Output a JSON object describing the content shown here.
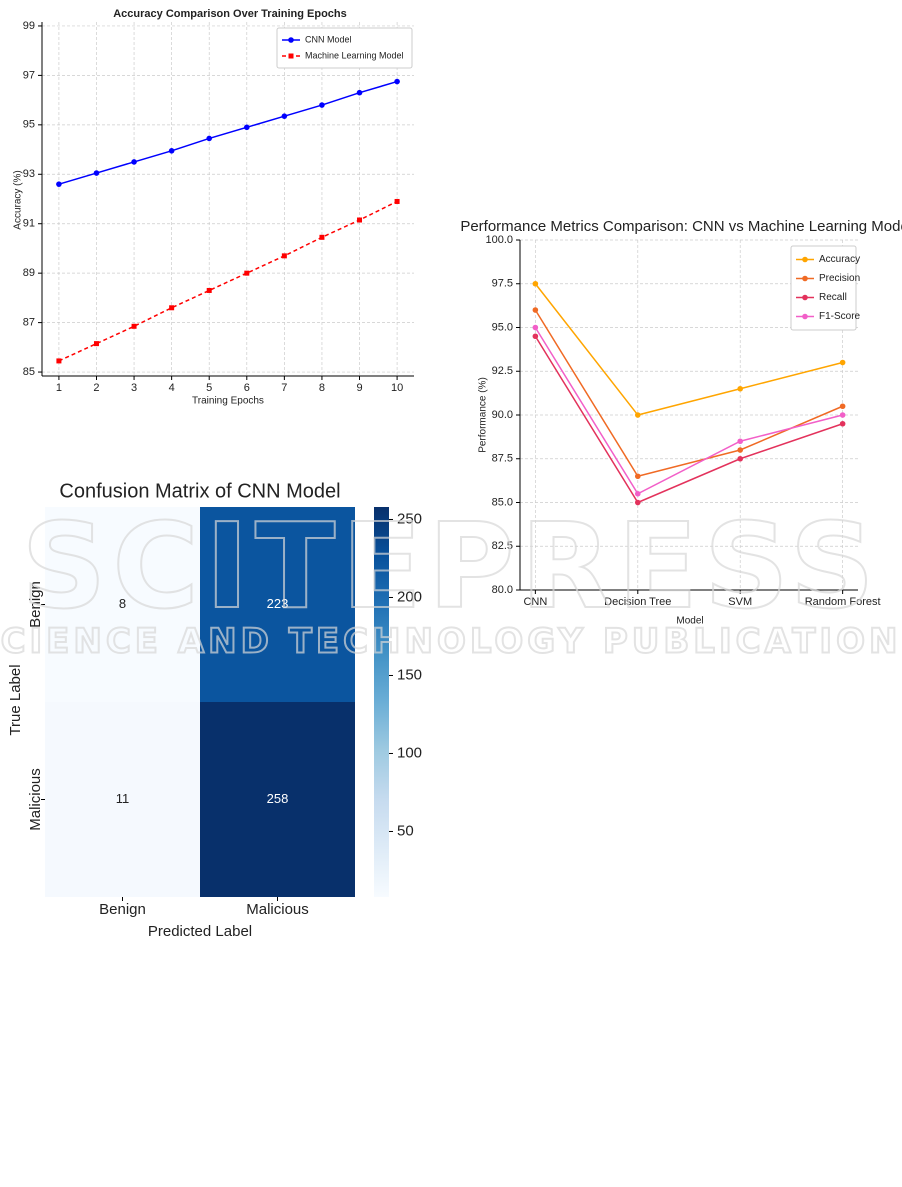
{
  "watermark": [
    "SCITEPRESS",
    "SCIENCE AND TECHNOLOGY PUBLICATIONS"
  ],
  "chart_data": [
    {
      "type": "line",
      "title": "Accuracy Comparison Over Training Epochs",
      "x_label": "Training Epochs",
      "y_label": "Accuracy (%)",
      "x": [
        1,
        2,
        3,
        4,
        5,
        6,
        7,
        8,
        9,
        10
      ],
      "xlim": [
        0.55,
        10.45
      ],
      "xticks": [
        1,
        2,
        3,
        4,
        5,
        6,
        7,
        8,
        9,
        10
      ],
      "ylim": [
        84.84,
        99.16
      ],
      "yticks": [
        85,
        87,
        89,
        91,
        93,
        95,
        97,
        99
      ],
      "grid": true,
      "legend": "upper right",
      "series": [
        {
          "name": "CNN Model",
          "color": "#0000ff",
          "marker": "circle",
          "linestyle": "solid",
          "values": [
            92.6,
            93.05,
            93.5,
            93.95,
            94.45,
            94.9,
            95.35,
            95.8,
            96.3,
            96.75
          ]
        },
        {
          "name": "Machine Learning Model",
          "color": "#ff0000",
          "marker": "square",
          "linestyle": "dashed",
          "values": [
            85.45,
            86.15,
            86.85,
            87.6,
            88.3,
            89.0,
            89.7,
            90.45,
            91.15,
            91.9
          ]
        }
      ]
    },
    {
      "type": "heatmap",
      "title": "Confusion Matrix of CNN Model",
      "x_label": "Predicted Label",
      "y_label": "True Label",
      "x_categories": [
        "Benign",
        "Malicious"
      ],
      "y_categories": [
        "Benign",
        "Malicious"
      ],
      "values": [
        [
          8,
          223
        ],
        [
          11,
          258
        ]
      ],
      "colormap": "Blues",
      "clim": [
        8,
        258
      ],
      "cticks": [
        50,
        100,
        150,
        200,
        250
      ]
    },
    {
      "type": "line",
      "title": "Performance Metrics Comparison: CNN vs Machine Learning Models",
      "x_label": "Model",
      "y_label": "Performance (%)",
      "categories": [
        "CNN",
        "Decision Tree",
        "SVM",
        "Random Forest"
      ],
      "ylim": [
        80,
        100
      ],
      "yticks": [
        {
          "value": 80,
          "label": "80.0"
        },
        {
          "value": 82.5,
          "label": "82.5"
        },
        {
          "value": 85,
          "label": "85.0"
        },
        {
          "value": 87.5,
          "label": "87.5"
        },
        {
          "value": 90,
          "label": "90.0"
        },
        {
          "value": 92.5,
          "label": "92.5"
        },
        {
          "value": 95,
          "label": "95.0"
        },
        {
          "value": 97.5,
          "label": "97.5"
        },
        {
          "value": 100,
          "label": "100.0"
        }
      ],
      "grid": true,
      "legend": "upper right",
      "series": [
        {
          "name": "Accuracy",
          "color": "#ffa500",
          "marker": "circle",
          "linestyle": "solid",
          "values": [
            97.5,
            90,
            91.5,
            93
          ]
        },
        {
          "name": "Precision",
          "color": "#f06a24",
          "marker": "circle",
          "linestyle": "solid",
          "values": [
            96,
            86.5,
            88,
            90.5
          ]
        },
        {
          "name": "Recall",
          "color": "#e3325c",
          "marker": "circle",
          "linestyle": "solid",
          "values": [
            94.5,
            85,
            87.5,
            89.5
          ]
        },
        {
          "name": "F1-Score",
          "color": "#f25fc8",
          "marker": "circle",
          "linestyle": "solid",
          "values": [
            95,
            85.5,
            88.5,
            90
          ]
        }
      ]
    }
  ]
}
